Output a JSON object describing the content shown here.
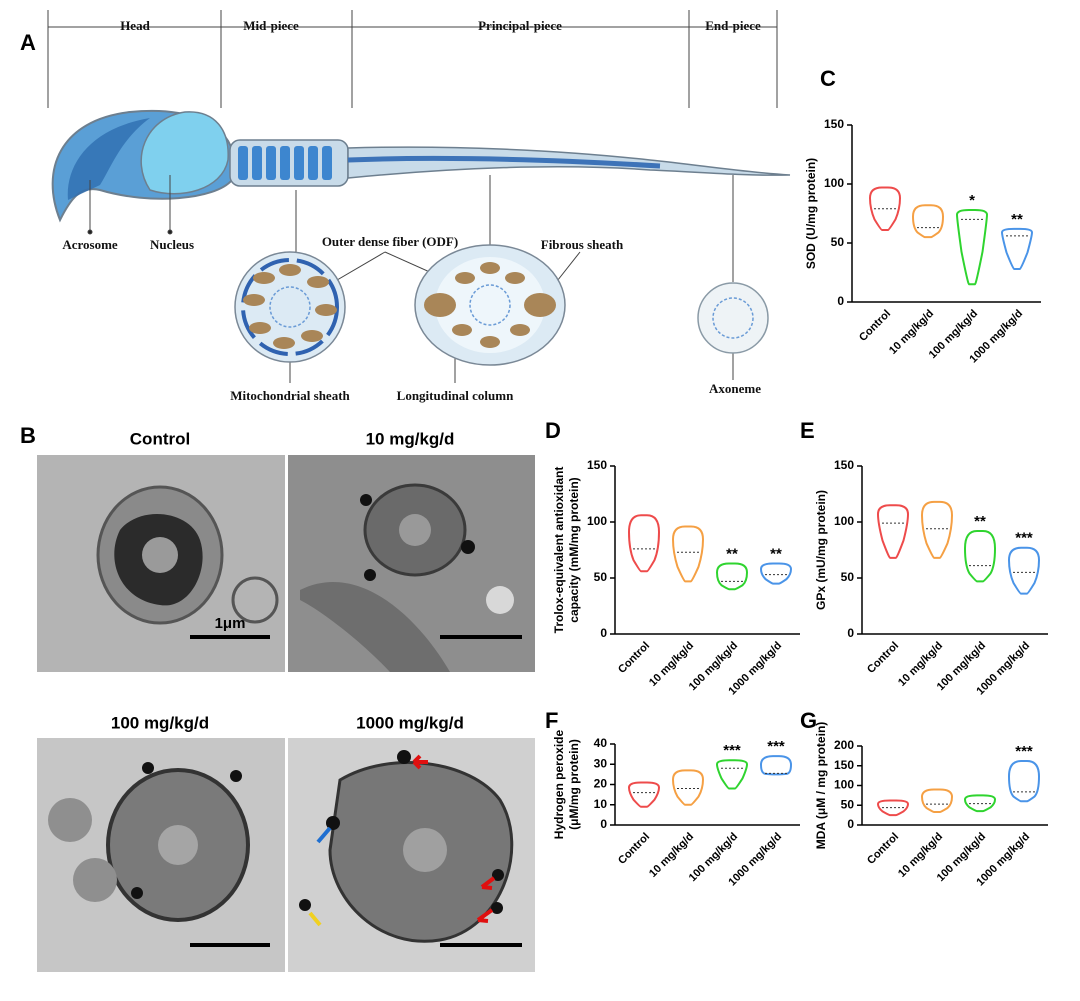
{
  "panels": {
    "a": "A",
    "b": "B"
  },
  "diagram": {
    "sections": [
      "Head",
      "Mid-piece",
      "Principal-piece",
      "End-piece"
    ],
    "labels": [
      "Acrosome",
      "Nucleus",
      "Outer dense fiber (ODF)",
      "Fibrous sheath",
      "Mitochondrial sheath",
      "Longitudinal column",
      "Axoneme"
    ]
  },
  "micrographs": {
    "titles": [
      "Control",
      "10 mg/kg/d",
      "100 mg/kg/d",
      "1000 mg/kg/d"
    ],
    "scale_bar": "1μm"
  },
  "chart_data": [
    {
      "type": "violin",
      "panel": "C",
      "ylabel": [
        "SOD (U/mg protein)"
      ],
      "categories": [
        "Control",
        "10 mg/kg/d",
        "100 mg/kg/d",
        "1000 mg/kg/d"
      ],
      "colors": [
        "#ee4b4b",
        "#f5a044",
        "#2fd42f",
        "#4a94e8"
      ],
      "min": [
        61,
        55,
        15,
        28
      ],
      "median": [
        79,
        63,
        70,
        56
      ],
      "max": [
        97,
        82,
        78,
        62
      ],
      "significance": [
        null,
        null,
        "*",
        "**"
      ],
      "ylim": [
        0,
        150
      ],
      "yticks": [
        0,
        50,
        100,
        150
      ]
    },
    {
      "type": "violin",
      "panel": "D",
      "ylabel": [
        "Trolox-equivalent antioxidant",
        "capacity (mM/mg protein)"
      ],
      "categories": [
        "Control",
        "10 mg/kg/d",
        "100 mg/kg/d",
        "1000 mg/kg/d"
      ],
      "colors": [
        "#ee4b4b",
        "#f5a044",
        "#2fd42f",
        "#4a94e8"
      ],
      "min": [
        56,
        47,
        40,
        45
      ],
      "median": [
        76,
        73,
        47,
        53
      ],
      "max": [
        106,
        96,
        63,
        63
      ],
      "significance": [
        null,
        null,
        "**",
        "**"
      ],
      "ylim": [
        0,
        150
      ],
      "yticks": [
        0,
        50,
        100,
        150
      ]
    },
    {
      "type": "violin",
      "panel": "E",
      "ylabel": [
        "GPx (mU/mg protein)"
      ],
      "categories": [
        "Control",
        "10 mg/kg/d",
        "100 mg/kg/d",
        "1000 mg/kg/d"
      ],
      "colors": [
        "#ee4b4b",
        "#f5a044",
        "#2fd42f",
        "#4a94e8"
      ],
      "min": [
        68,
        68,
        47,
        36
      ],
      "median": [
        99,
        94,
        61,
        55
      ],
      "max": [
        115,
        118,
        92,
        77
      ],
      "significance": [
        null,
        null,
        "**",
        "***"
      ],
      "ylim": [
        0,
        150
      ],
      "yticks": [
        0,
        50,
        100,
        150
      ]
    },
    {
      "type": "violin",
      "panel": "F",
      "ylabel": [
        "Hydrogen peroxide",
        "(μM/mg protein)"
      ],
      "categories": [
        "Control",
        "10 mg/kg/d",
        "100 mg/kg/d",
        "1000 mg/kg/d"
      ],
      "colors": [
        "#ee4b4b",
        "#f5a044",
        "#2fd42f",
        "#4a94e8"
      ],
      "min": [
        9,
        10,
        18,
        25
      ],
      "median": [
        16,
        18,
        28,
        25.5
      ],
      "max": [
        21,
        27,
        32,
        34
      ],
      "significance": [
        null,
        null,
        "***",
        "***"
      ],
      "ylim": [
        0,
        40
      ],
      "yticks": [
        0,
        10,
        20,
        30,
        40
      ]
    },
    {
      "type": "violin",
      "panel": "G",
      "ylabel": [
        "MDA (μM / mg protein)"
      ],
      "categories": [
        "Control",
        "10 mg/kg/d",
        "100 mg/kg/d",
        "1000 mg/kg/d"
      ],
      "colors": [
        "#ee4b4b",
        "#f5a044",
        "#2fd42f",
        "#4a94e8"
      ],
      "min": [
        25,
        33,
        35,
        60
      ],
      "median": [
        44,
        53,
        54,
        84
      ],
      "max": [
        62,
        90,
        75,
        162
      ],
      "significance": [
        null,
        null,
        null,
        "***"
      ],
      "ylim": [
        0,
        200
      ],
      "yticks": [
        0,
        50,
        100,
        150,
        200
      ]
    }
  ]
}
